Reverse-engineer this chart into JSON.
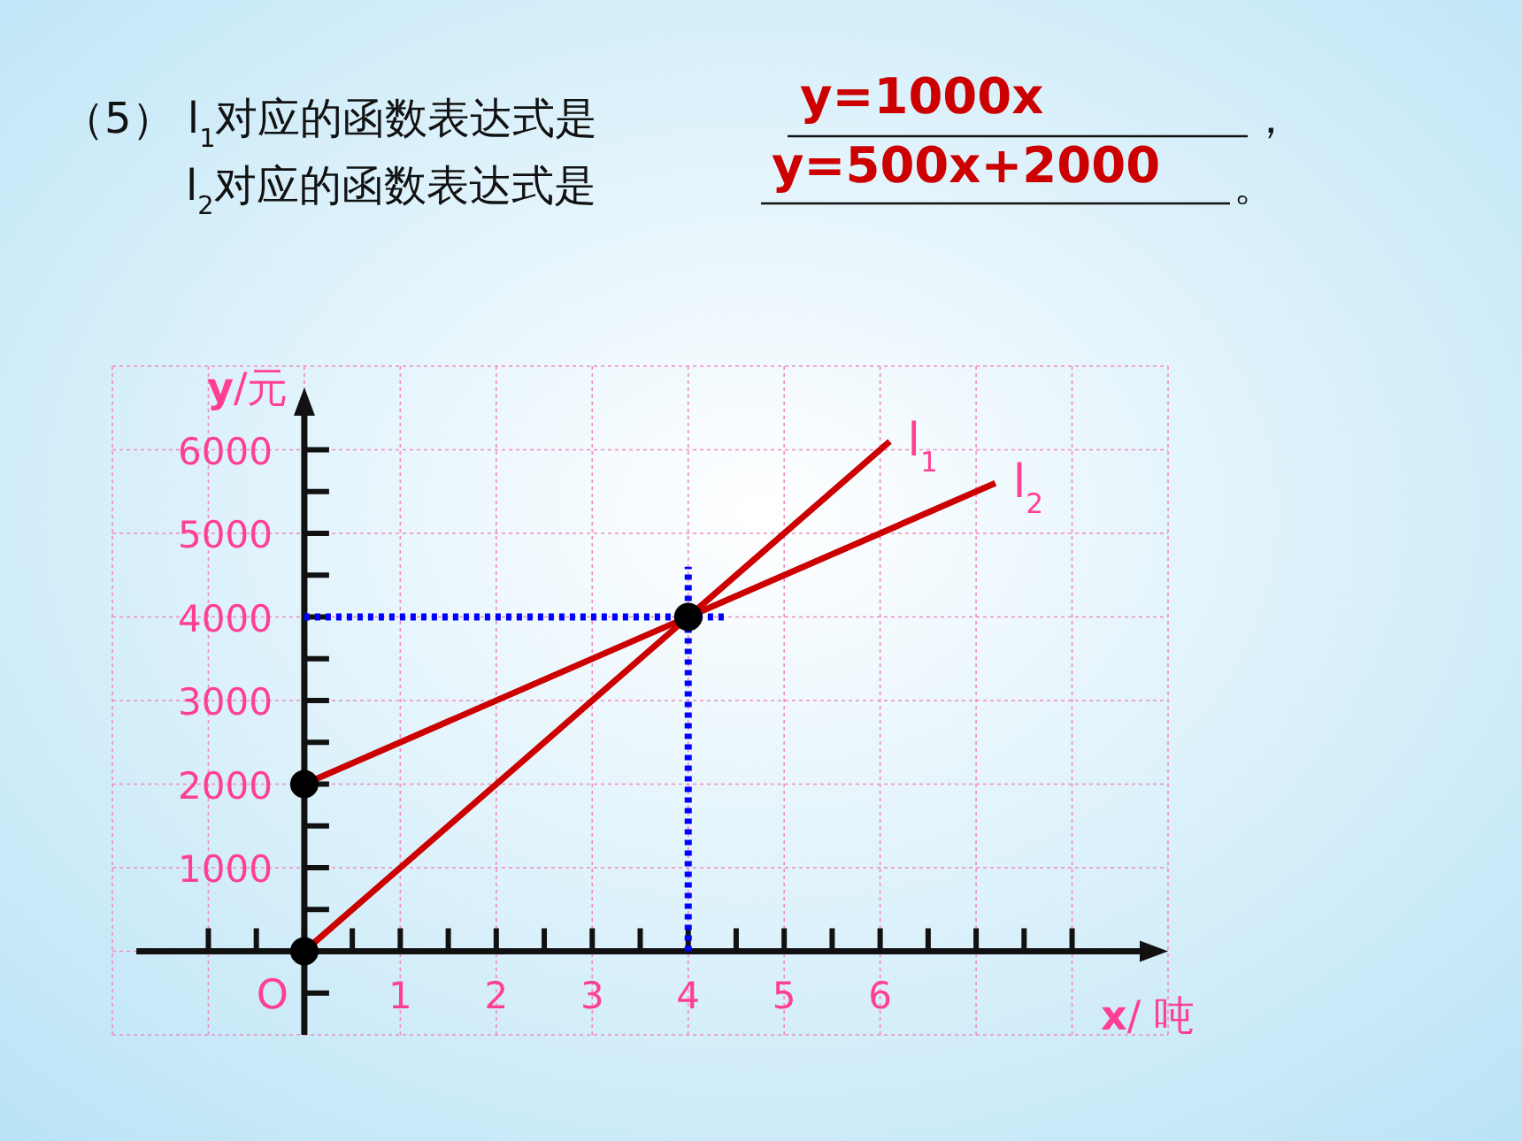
{
  "chart_data": {
    "type": "line",
    "annotations": [
      "（5） l$_{1}$对应的函数表达式是",
      "y=1000x",
      "，",
      "l$_{2}$对应的函数表达式是",
      "y=500x+2000",
      "。",
      {
        "text": "O",
        "x": 0,
        "y": 0
      }
    ],
    "xlabel": "**x**/ 吨",
    "ylabel": "**y**/元",
    "xlim": [
      -2,
      9
    ],
    "ylim": [
      -1000,
      7000
    ],
    "xticks": [
      {
        "value": -1,
        "label": null
      },
      {
        "value": -0.5,
        "label": null
      },
      {
        "value": 0,
        "label": null
      },
      {
        "value": 0.5,
        "label": null
      },
      1,
      {
        "value": 1.5,
        "label": null
      },
      2,
      {
        "value": 2.5,
        "label": null
      },
      3,
      {
        "value": 3.5,
        "label": null
      },
      4,
      {
        "value": 4.5,
        "label": null
      },
      5,
      {
        "value": 5.5,
        "label": null
      },
      6,
      {
        "value": 6.5,
        "label": null
      },
      {
        "value": 7,
        "label": null
      },
      {
        "value": 7.5,
        "label": null
      },
      {
        "value": 8,
        "label": null
      }
    ],
    "yticks": [
      {
        "value": -500,
        "label": null
      },
      {
        "value": 500,
        "label": null
      },
      1000,
      {
        "value": 1500,
        "label": null
      },
      2000,
      {
        "value": 2500,
        "label": null
      },
      3000,
      {
        "value": 3500,
        "label": null
      },
      4000,
      {
        "value": 4500,
        "label": null
      },
      5000,
      {
        "value": 5500,
        "label": null
      },
      6000
    ],
    "grid": true,
    "series": [
      {
        "name": "l$_{1}$",
        "type": "line",
        "color": "#cc0000",
        "x": [
          0,
          4,
          6.1
        ],
        "values": [
          0,
          4000,
          6100
        ]
      },
      {
        "name": "l$_{2}$",
        "type": "line",
        "color": "#cc0000",
        "x": [
          0,
          4,
          7.2
        ],
        "values": [
          2000,
          4000,
          5600
        ]
      },
      {
        "type": "line",
        "color": "#0000ff",
        "line_style": "dotted",
        "x": [
          4,
          4
        ],
        "values": [
          0,
          4600
        ]
      },
      {
        "type": "line",
        "color": "#0000ff",
        "line_style": "dotted",
        "x": [
          0,
          4.4
        ],
        "values": [
          4000,
          4000
        ]
      },
      {
        "type": "scatter",
        "color": "#000000",
        "marker": "circle",
        "x": [
          0,
          0,
          4
        ],
        "values": [
          0,
          2000,
          4000
        ]
      }
    ]
  }
}
